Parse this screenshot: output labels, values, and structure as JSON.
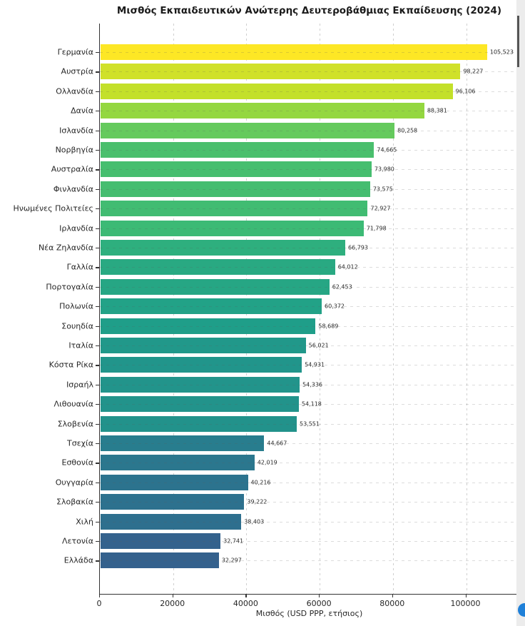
{
  "chart_data": {
    "type": "bar",
    "orientation": "horizontal",
    "title": "Μισθός Εκπαιδευτικών Ανώτερης Δευτεροβάθμιας Εκπαίδευσης (2024)",
    "xlabel": "Μισθός (USD PPP, ετήσιος)",
    "categories": [
      "Γερμανία",
      "Αυστρία",
      "Ολλανδία",
      "Δανία",
      "Ισλανδία",
      "Νορβηγία",
      "Αυστραλία",
      "Φινλανδία",
      "Ηνωμένες Πολιτείες",
      "Ιρλανδία",
      "Νέα Ζηλανδία",
      "Γαλλία",
      "Πορτογαλία",
      "Πολωνία",
      "Σουηδία",
      "Ιταλία",
      "Κόστα Ρίκα",
      "Ισραήλ",
      "Λιθουανία",
      "Σλοβενία",
      "Τσεχία",
      "Εσθονία",
      "Ουγγαρία",
      "Σλοβακία",
      "Χιλή",
      "Λετονία",
      "Ελλάδα"
    ],
    "values": [
      105523,
      98227,
      96106,
      88381,
      80258,
      74665,
      73980,
      73575,
      72927,
      71798,
      66793,
      64012,
      62453,
      60372,
      58689,
      56021,
      54931,
      54336,
      54118,
      53551,
      44667,
      42019,
      40216,
      39222,
      38403,
      32741,
      32297
    ],
    "value_labels": [
      "105,523",
      "98,227",
      "96,106",
      "88,381",
      "80,258",
      "74,665",
      "73,980",
      "73,575",
      "72,927",
      "71,798",
      "66,793",
      "64,012",
      "62,453",
      "60,372",
      "58,689",
      "56,021",
      "54,931",
      "54,336",
      "54,118",
      "53,551",
      "44,667",
      "42,019",
      "40,216",
      "39,222",
      "38,403",
      "32,741",
      "32,297"
    ],
    "bar_colors": [
      "#fde725",
      "#d0e129",
      "#c3e02a",
      "#94d740",
      "#65ca5d",
      "#4abf6d",
      "#46be6f",
      "#45bd70",
      "#41bc72",
      "#3cba75",
      "#2eaf7e",
      "#29a982",
      "#26a684",
      "#22a287",
      "#1f9e89",
      "#21988a",
      "#21958b",
      "#22948b",
      "#22938b",
      "#22928b",
      "#287d8e",
      "#2b778e",
      "#2c738e",
      "#2d718e",
      "#2e6f8e",
      "#34628d",
      "#34618d"
    ],
    "colormap": "viridis (scaled by value)",
    "x_ticks": [
      0,
      20000,
      40000,
      60000,
      80000,
      100000
    ],
    "x_tick_labels": [
      "0",
      "20000",
      "40000",
      "60000",
      "80000",
      "100000"
    ],
    "xlim": [
      0,
      114700
    ],
    "grid": {
      "vertical": "dashed",
      "horizontal": "dashed per category"
    },
    "legend": "none"
  },
  "colors": {
    "axis": "#333333",
    "grid": "#cfcfcf",
    "text": "#262626",
    "background": "#ffffff",
    "scrollbar_track": "#ececec",
    "scrollbar_thumb": "#555555",
    "floating_button": "#1f80d8"
  }
}
